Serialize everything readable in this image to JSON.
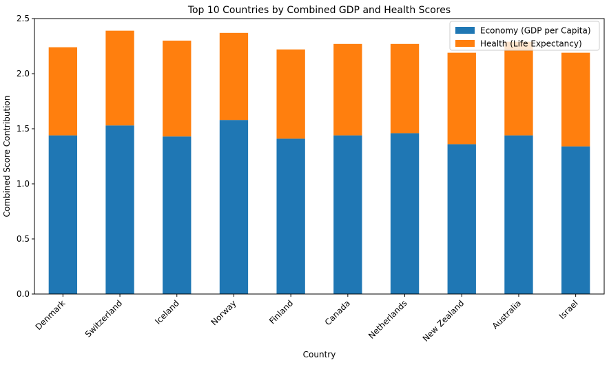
{
  "chart_data": {
    "type": "bar",
    "stacked": true,
    "title": "Top 10 Countries by Combined GDP and Health Scores",
    "xlabel": "Country",
    "ylabel": "Combined Score Contribution",
    "ylim": [
      0,
      2.5
    ],
    "yticks": [
      0.0,
      0.5,
      1.0,
      1.5,
      2.0,
      2.5
    ],
    "ytick_labels": [
      "0.0",
      "0.5",
      "1.0",
      "1.5",
      "2.0",
      "2.5"
    ],
    "grid": false,
    "legend_position": "top-right",
    "categories": [
      "Denmark",
      "Switzerland",
      "Iceland",
      "Norway",
      "Finland",
      "Canada",
      "Netherlands",
      "New Zealand",
      "Australia",
      "Israel"
    ],
    "series": [
      {
        "name": "Economy (GDP per Capita)",
        "color": "#1f77b4",
        "values": [
          1.44,
          1.53,
          1.43,
          1.58,
          1.41,
          1.44,
          1.46,
          1.36,
          1.44,
          1.34
        ]
      },
      {
        "name": "Health (Life Expectancy)",
        "color": "#ff7f0e",
        "values": [
          0.8,
          0.86,
          0.87,
          0.79,
          0.81,
          0.83,
          0.81,
          0.83,
          0.85,
          0.85
        ]
      }
    ]
  }
}
